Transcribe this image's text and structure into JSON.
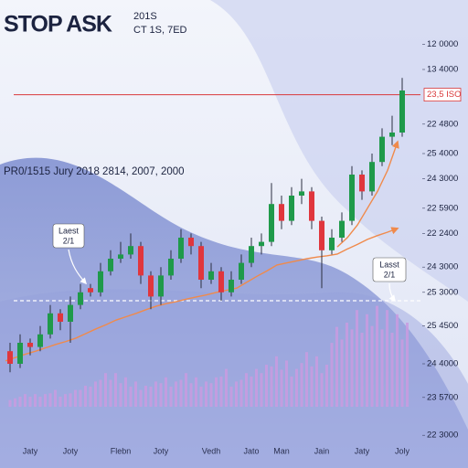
{
  "chart_data": {
    "type": "candlestick",
    "title": "STOP ASK",
    "title_note": "201S",
    "subtitle": "CT 1S, 7ED",
    "caption": "PR0/1515 Jury 2018 2814, 2007, 2000",
    "categories": [
      null,
      null,
      "Jaty",
      null,
      null,
      null,
      "Joty",
      null,
      null,
      null,
      null,
      "Flebn",
      null,
      null,
      null,
      "Joty",
      null,
      null,
      null,
      null,
      "Vedh",
      null,
      null,
      null,
      "Jato",
      null,
      null,
      "Man",
      null,
      null,
      null,
      "Jain",
      null,
      null,
      null,
      "Jaty",
      null,
      null,
      null,
      "Joly"
    ],
    "open": [
      23,
      20,
      25,
      24,
      27,
      32,
      30,
      34,
      38,
      37,
      42,
      45,
      46,
      48,
      41,
      36,
      41,
      45,
      50,
      48,
      40,
      42,
      37,
      40,
      44,
      48,
      49,
      58,
      54,
      60,
      61,
      54,
      47,
      50,
      54,
      65,
      61,
      68,
      74,
      75
    ],
    "high": [
      25,
      27,
      26,
      29,
      34,
      33,
      36,
      39,
      39,
      44,
      47,
      49,
      51,
      49,
      42,
      43,
      47,
      52,
      51,
      49,
      44,
      43,
      42,
      46,
      50,
      51,
      63,
      60,
      62,
      64,
      62,
      55,
      52,
      56,
      67,
      66,
      70,
      76,
      79,
      88
    ],
    "low": [
      18,
      19,
      22,
      23,
      26,
      28,
      25,
      33,
      36,
      36,
      41,
      44,
      45,
      39,
      33,
      34,
      40,
      44,
      46,
      38,
      39,
      35,
      36,
      39,
      43,
      46,
      48,
      52,
      53,
      58,
      52,
      38,
      46,
      49,
      53,
      59,
      60,
      67,
      72,
      74
    ],
    "close": [
      20,
      25,
      24,
      27,
      32,
      30,
      34,
      37,
      37,
      42,
      45,
      46,
      48,
      41,
      36,
      41,
      45,
      50,
      48,
      40,
      42,
      37,
      40,
      44,
      48,
      49,
      58,
      54,
      60,
      61,
      54,
      47,
      50,
      54,
      65,
      61,
      68,
      74,
      75,
      85
    ],
    "volume": [
      2,
      3,
      3,
      3,
      4,
      3,
      4,
      5,
      6,
      8,
      8,
      7,
      6,
      5,
      6,
      7,
      6,
      8,
      7,
      6,
      7,
      9,
      6,
      8,
      9,
      10,
      12,
      11,
      9,
      13,
      12,
      10,
      19,
      20,
      23,
      22,
      24,
      23,
      22,
      20
    ],
    "up_color": "#1f9a4a",
    "down_color": "#e0363d",
    "volume_color": "#c99be0",
    "lines": [
      {
        "color": "#f08a4b",
        "values": [
          20.7,
          21.5,
          22.3,
          23,
          23.8,
          24.6,
          25.3,
          26.1,
          27.2,
          28.3,
          29.3,
          30.4,
          31.2,
          32,
          32.9,
          33.7,
          34.3,
          34.8,
          35.4,
          35.9,
          36.4,
          37,
          37.5,
          38,
          39.4,
          40.8,
          42.1,
          43.5,
          44,
          44.5,
          45,
          45.4,
          45.7,
          46.1,
          47.3,
          48.4,
          49.6,
          50.5,
          51.3,
          52.2
        ]
      },
      {
        "color": "#f08a4b",
        "values": [
          null,
          null,
          null,
          null,
          null,
          null,
          null,
          null,
          null,
          null,
          null,
          null,
          null,
          null,
          null,
          null,
          null,
          null,
          null,
          null,
          null,
          null,
          null,
          null,
          null,
          null,
          null,
          null,
          null,
          null,
          null,
          null,
          null,
          47.8,
          50,
          53,
          57,
          61,
          66,
          72.8
        ]
      }
    ],
    "hlines": [
      {
        "value": 84,
        "label": "23,5 ISO",
        "color": "#d9383a"
      },
      {
        "value": 35,
        "color": "#ffffff",
        "dashed": true
      }
    ],
    "ylim": [
      0,
      100
    ],
    "yticks": [
      {
        "value": 96,
        "label": "12 0000"
      },
      {
        "value": 90,
        "label": "13 4000"
      },
      {
        "value": 77,
        "label": "22 4800"
      },
      {
        "value": 70,
        "label": "25 4000"
      },
      {
        "value": 64,
        "label": "24 3000"
      },
      {
        "value": 57,
        "label": "22 5900"
      },
      {
        "value": 51,
        "label": "22 2400"
      },
      {
        "value": 43,
        "label": "24 3000"
      },
      {
        "value": 37,
        "label": "25 3000"
      },
      {
        "value": 29,
        "label": "25 4500"
      },
      {
        "value": 20,
        "label": "24 4000"
      },
      {
        "value": 12,
        "label": "23 5700"
      },
      {
        "value": 3,
        "label": "22 3000"
      }
    ],
    "annotations": [
      {
        "title": "Laest",
        "text": "2/1"
      },
      {
        "title": "Lasst",
        "text": "2/1"
      }
    ]
  }
}
